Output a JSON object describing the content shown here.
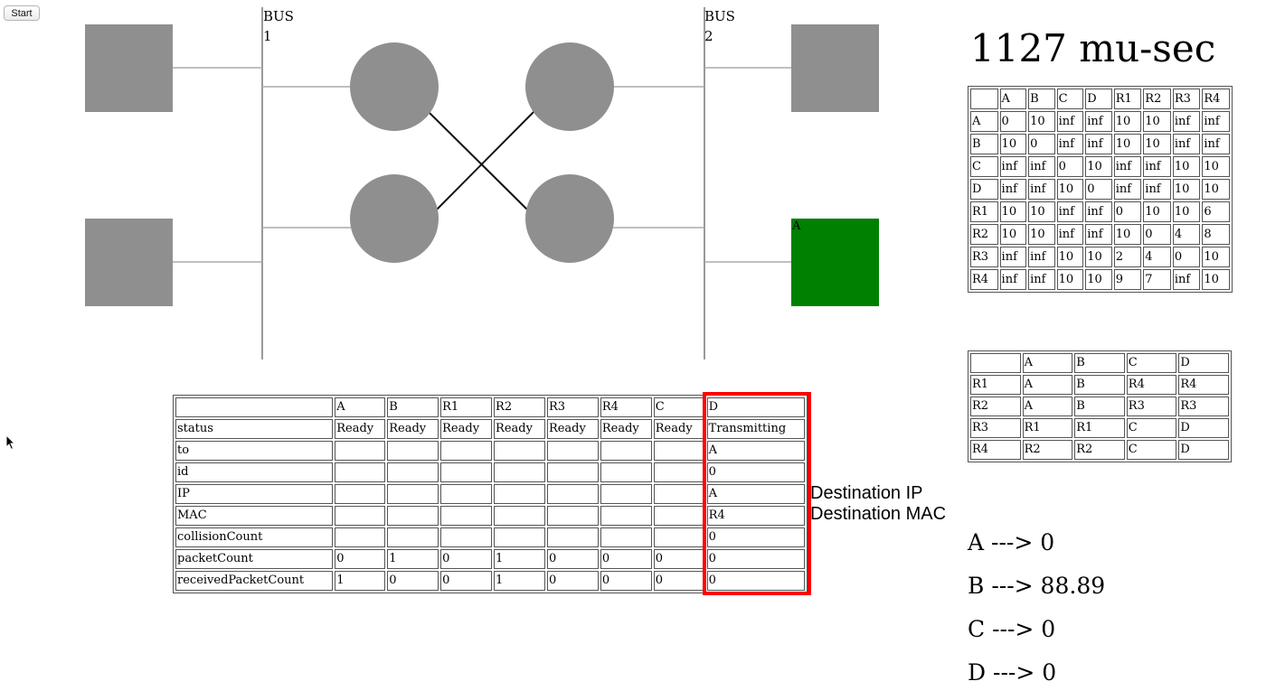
{
  "controls": {
    "start_label": "Start"
  },
  "buses": [
    {
      "label": "BUS 1"
    },
    {
      "label": "BUS 2"
    }
  ],
  "active_node_label": "A",
  "colors": {
    "node": "#8f8f8f",
    "active": "#008000",
    "highlight": "#ff0000"
  },
  "timer": "1127 mu-sec",
  "distance_table": {
    "header": [
      "",
      "A",
      "B",
      "C",
      "D",
      "R1",
      "R2",
      "R3",
      "R4"
    ],
    "rows": [
      [
        "A",
        "0",
        "10",
        "inf",
        "inf",
        "10",
        "10",
        "inf",
        "inf"
      ],
      [
        "B",
        "10",
        "0",
        "inf",
        "inf",
        "10",
        "10",
        "inf",
        "inf"
      ],
      [
        "C",
        "inf",
        "inf",
        "0",
        "10",
        "inf",
        "inf",
        "10",
        "10"
      ],
      [
        "D",
        "inf",
        "inf",
        "10",
        "0",
        "inf",
        "inf",
        "10",
        "10"
      ],
      [
        "R1",
        "10",
        "10",
        "inf",
        "inf",
        "0",
        "10",
        "10",
        "6"
      ],
      [
        "R2",
        "10",
        "10",
        "inf",
        "inf",
        "10",
        "0",
        "4",
        "8"
      ],
      [
        "R3",
        "inf",
        "inf",
        "10",
        "10",
        "2",
        "4",
        "0",
        "10"
      ],
      [
        "R4",
        "inf",
        "inf",
        "10",
        "10",
        "9",
        "7",
        "inf",
        "10"
      ]
    ]
  },
  "routing_table": {
    "header": [
      "",
      "A",
      "B",
      "C",
      "D"
    ],
    "rows": [
      [
        "R1",
        "A",
        "B",
        "R4",
        "R4"
      ],
      [
        "R2",
        "A",
        "B",
        "R3",
        "R3"
      ],
      [
        "R3",
        "R1",
        "R1",
        "C",
        "D"
      ],
      [
        "R4",
        "R2",
        "R2",
        "C",
        "D"
      ]
    ]
  },
  "state_table": {
    "header": [
      "",
      "A",
      "B",
      "R1",
      "R2",
      "R3",
      "R4",
      "C",
      "D"
    ],
    "rows": [
      [
        "status",
        "Ready",
        "Ready",
        "Ready",
        "Ready",
        "Ready",
        "Ready",
        "Ready",
        "Transmitting"
      ],
      [
        "to",
        "",
        "",
        "",
        "",
        "",
        "",
        "",
        "A"
      ],
      [
        "id",
        "",
        "",
        "",
        "",
        "",
        "",
        "",
        "0"
      ],
      [
        "IP",
        "",
        "",
        "",
        "",
        "",
        "",
        "",
        "A"
      ],
      [
        "MAC",
        "",
        "",
        "",
        "",
        "",
        "",
        "",
        "R4"
      ],
      [
        "collisionCount",
        "",
        "",
        "",
        "",
        "",
        "",
        "",
        "0"
      ],
      [
        "packetCount",
        "0",
        "1",
        "0",
        "1",
        "0",
        "0",
        "0",
        "0"
      ],
      [
        "receivedPacketCount",
        "1",
        "0",
        "0",
        "1",
        "0",
        "0",
        "0",
        "0"
      ]
    ]
  },
  "annotations": {
    "dest_ip": "Destination IP",
    "dest_mac": "Destination MAC"
  },
  "utilization": [
    {
      "text": "A ---> 0"
    },
    {
      "text": "B ---> 88.89"
    },
    {
      "text": "C ---> 0"
    },
    {
      "text": "D ---> 0"
    }
  ]
}
